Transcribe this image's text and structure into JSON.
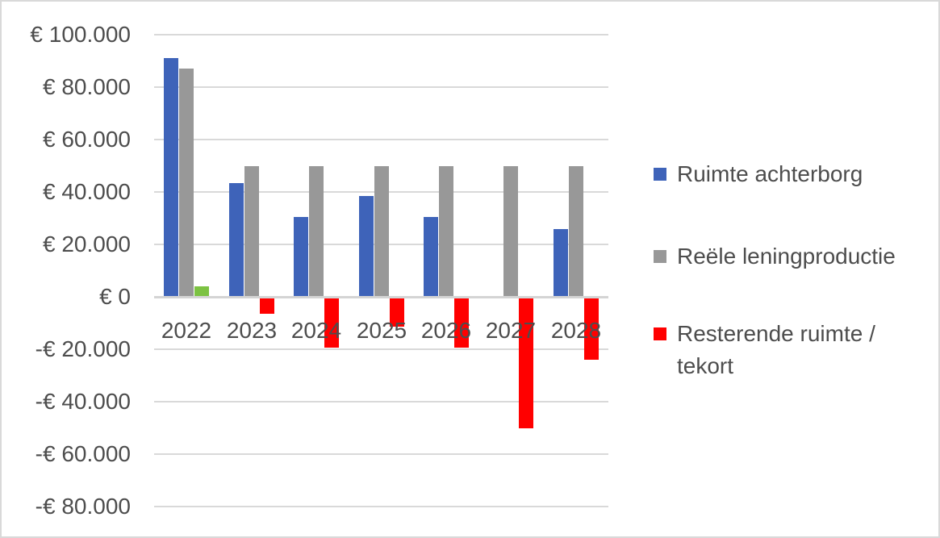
{
  "chart_data": {
    "type": "bar",
    "title": "",
    "xlabel": "",
    "ylabel": "",
    "categories": [
      "2022",
      "2023",
      "2024",
      "2025",
      "2026",
      "2027",
      "2028"
    ],
    "series": [
      {
        "name": "Ruimte achterborg",
        "color": "#3E63B9",
        "values": [
          91000,
          43500,
          30500,
          38500,
          30500,
          0,
          26000
        ]
      },
      {
        "name": "Reële leningproductie",
        "color": "#989898",
        "values": [
          87000,
          50000,
          50000,
          50000,
          50000,
          50000,
          50000
        ]
      },
      {
        "name": "Resterende ruimte / tekort",
        "color": "#FF0000",
        "positive_color": "#7CC242",
        "values": [
          4000,
          -6500,
          -19500,
          -11500,
          -19500,
          -50000,
          -24000
        ]
      }
    ],
    "ylim": [
      -80000,
      100000
    ],
    "ytick_step": 20000,
    "ytick_labels": [
      "€ 100.000",
      "€ 80.000",
      "€ 60.000",
      "€ 40.000",
      "€ 20.000",
      "€ 0",
      "-€ 20.000",
      "-€ 40.000",
      "-€ 60.000",
      "-€ 80.000"
    ],
    "grid": true,
    "legend_position": "right"
  },
  "legend": {
    "items": [
      {
        "label": "Ruimte achterborg",
        "color": "#3E63B9"
      },
      {
        "label": "Reële leningproductie",
        "color": "#989898"
      },
      {
        "label": "Resterende ruimte /\ntekort",
        "color": "#FF0000"
      }
    ]
  },
  "colors": {
    "grid": "#D9D9D9",
    "axis": "#D4D4D4",
    "text": "#4D4D4D",
    "border": "#D9D9D9",
    "background": "#FFFFFF"
  }
}
